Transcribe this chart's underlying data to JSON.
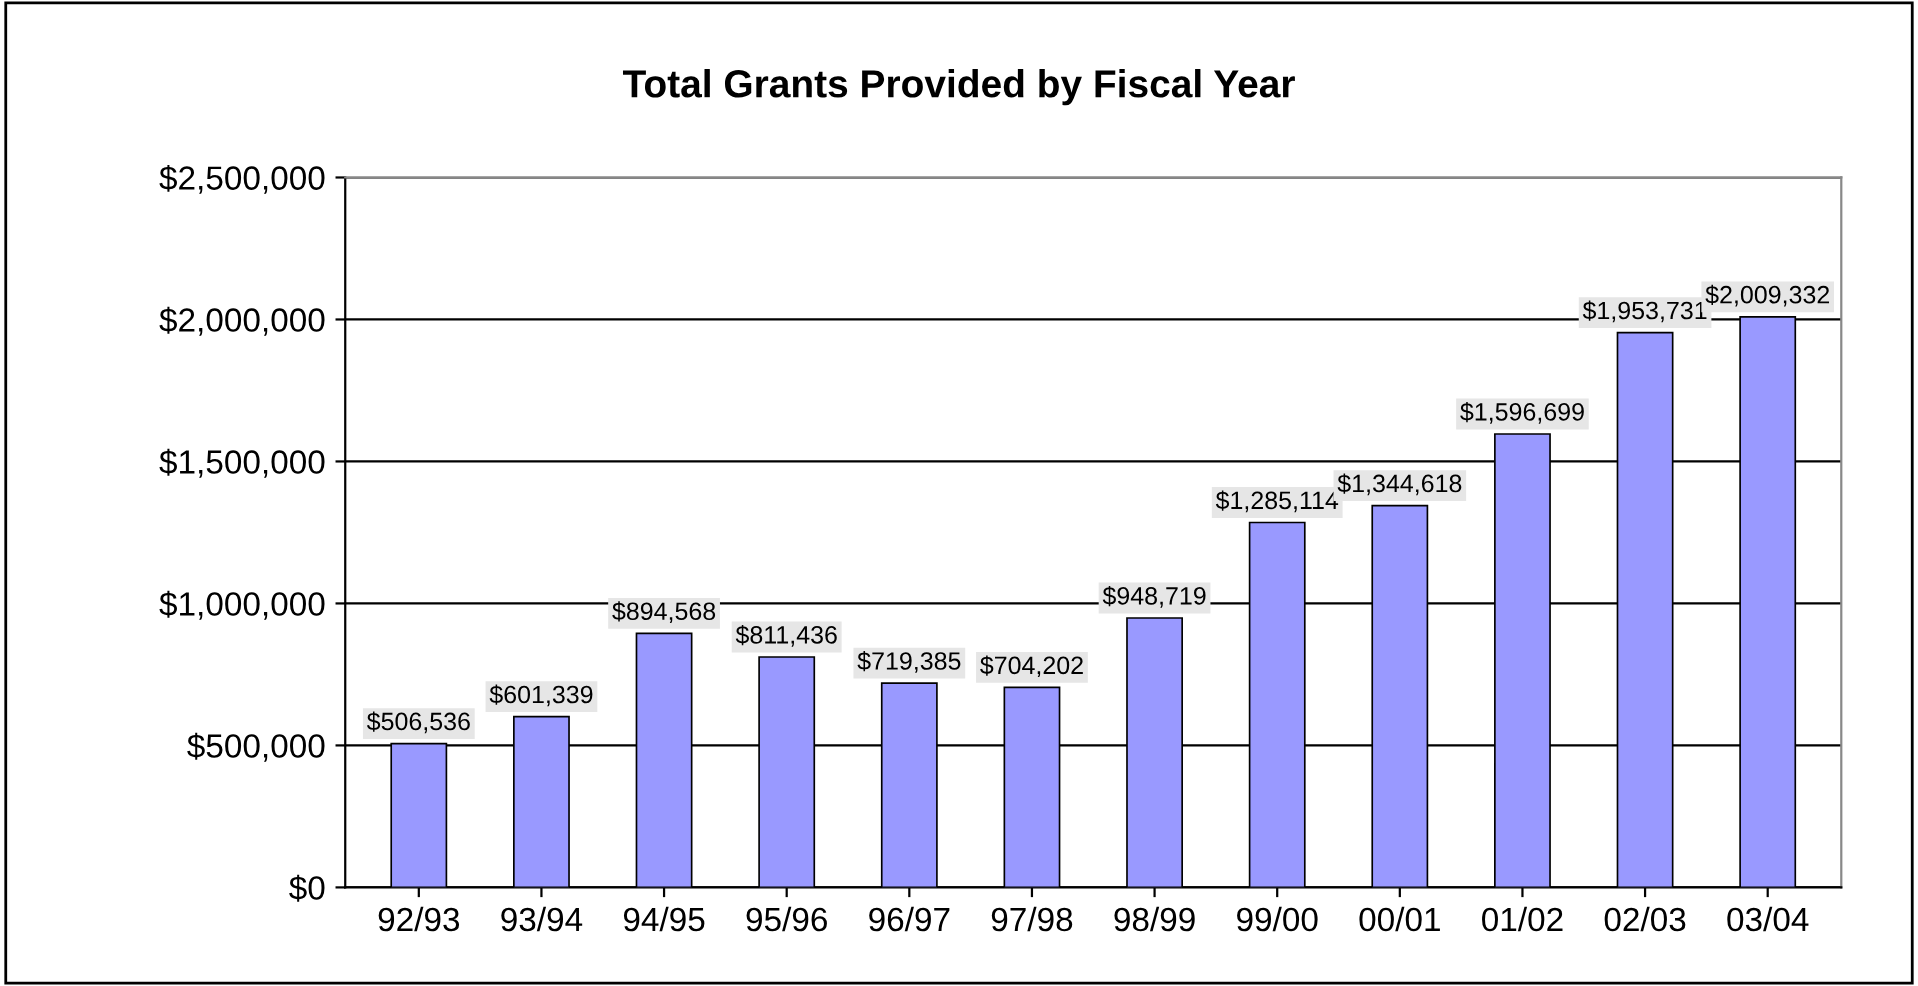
{
  "chart_data": {
    "type": "bar",
    "title": "Total Grants Provided by Fiscal Year",
    "categories": [
      "92/93",
      "93/94",
      "94/95",
      "95/96",
      "96/97",
      "97/98",
      "98/99",
      "99/00",
      "00/01",
      "01/02",
      "02/03",
      "03/04"
    ],
    "values": [
      506536,
      601339,
      894568,
      811436,
      719385,
      704202,
      948719,
      1285114,
      1344618,
      1596699,
      1953731,
      2009332
    ],
    "value_labels": [
      "$506,536",
      "$601,339",
      "$894,568",
      "$811,436",
      "$719,385",
      "$704,202",
      "$948,719",
      "$1,285,114",
      "$1,344,618",
      "$1,596,699",
      "$1,953,731",
      "$2,009,332"
    ],
    "color": "#9999ff",
    "ylim": [
      0,
      2500000
    ],
    "yticks": [
      {
        "value": 0,
        "label": "$0"
      },
      {
        "value": 500000,
        "label": "$500,000"
      },
      {
        "value": 1000000,
        "label": "$1,000,000"
      },
      {
        "value": 1500000,
        "label": "$1,500,000"
      },
      {
        "value": 2000000,
        "label": "$2,000,000"
      },
      {
        "value": 2500000,
        "label": "$2,500,000"
      }
    ],
    "grid": "y",
    "legend": false
  }
}
